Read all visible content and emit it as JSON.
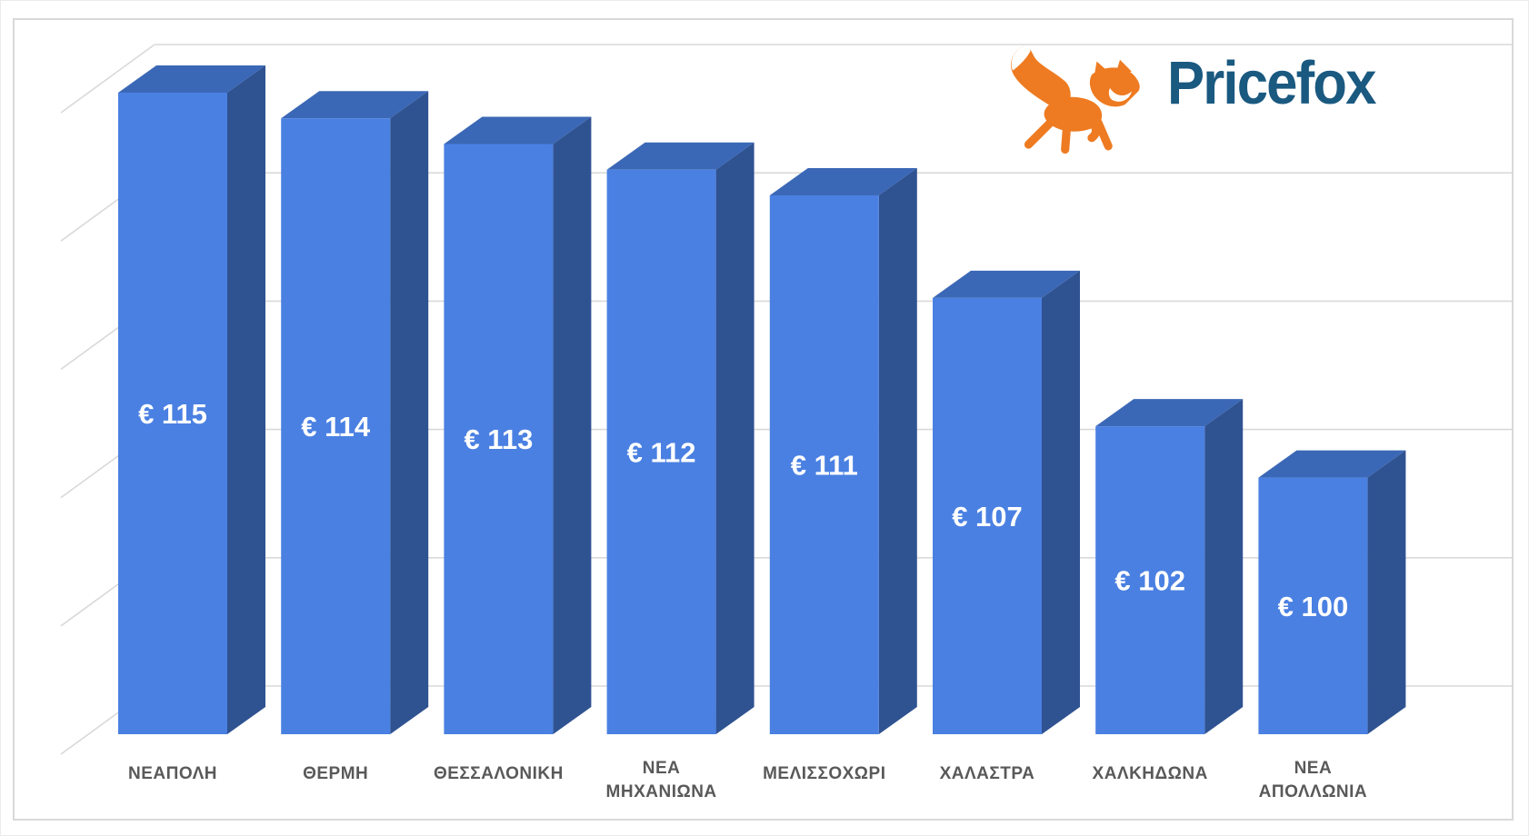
{
  "logo": {
    "brand": "Pricefox",
    "icon": "fox-icon",
    "brand_color": "#1A5980",
    "icon_color": "#EE7B21"
  },
  "chart_data": {
    "type": "bar",
    "style": "3d-column",
    "title": "",
    "xlabel": "",
    "ylabel": "",
    "currency_prefix": "€",
    "categories": [
      "ΝΕΑΠΟΛΗ",
      "ΘΕΡΜΗ",
      "ΘΕΣΣΑΛΟΝΙΚΗ",
      "ΝΕΑ ΜΗΧΑΝΙΩΝΑ",
      "ΜΕΛΙΣΣΟΧΩΡΙ",
      "ΧΑΛΑΣΤΡΑ",
      "ΧΑΛΚΗΔΩΝΑ",
      "ΝΕΑ ΑΠΟΛΛΩΝΙΑ"
    ],
    "values": [
      115,
      114,
      113,
      112,
      111,
      107,
      102,
      100
    ],
    "data_labels": [
      "€ 115",
      "€ 114",
      "€ 113",
      "€ 112",
      "€ 111",
      "€ 107",
      "€ 102",
      "€ 100"
    ],
    "ylim": [
      90,
      115
    ],
    "y_major_unit": 5,
    "y_axis_labels": "hidden",
    "grid": true,
    "legend": "none",
    "bar_front_color": "#4A80E2",
    "bar_top_color": "#3B68B6",
    "bar_side_color": "#2F5291",
    "gridline_color": "#D9D9D9",
    "category_label_color": "#595959",
    "value_label_color": "#FFFFFF"
  }
}
